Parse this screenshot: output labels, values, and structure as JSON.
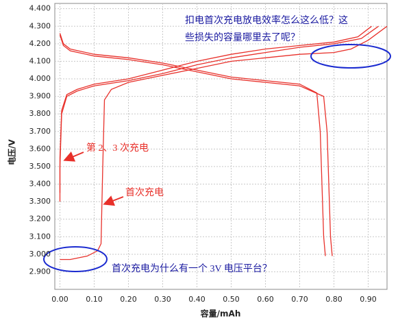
{
  "chart_data": {
    "type": "line",
    "xlabel": "容量/mAh",
    "ylabel": "电压/V",
    "xlim": [
      -0.015,
      0.955
    ],
    "ylim": [
      2.8,
      4.43
    ],
    "grid": true,
    "xticks": [
      {
        "value": 0,
        "label": "0.00"
      },
      {
        "value": 0.1,
        "label": "0.10"
      },
      {
        "value": 0.2,
        "label": "0.20"
      },
      {
        "value": 0.3,
        "label": "0.30"
      },
      {
        "value": 0.4,
        "label": "0.40"
      },
      {
        "value": 0.5,
        "label": "0.50"
      },
      {
        "value": 0.6,
        "label": "0.60"
      },
      {
        "value": 0.7,
        "label": "0.70"
      },
      {
        "value": 0.8,
        "label": "0.80"
      },
      {
        "value": 0.9,
        "label": "0.90"
      }
    ],
    "yticks": [
      {
        "value": 2.9,
        "label": "2.900"
      },
      {
        "value": 3.0,
        "label": "3.000"
      },
      {
        "value": 3.1,
        "label": "3.100"
      },
      {
        "value": 3.2,
        "label": "3.200"
      },
      {
        "value": 3.3,
        "label": "3.300"
      },
      {
        "value": 3.4,
        "label": "3.400"
      },
      {
        "value": 3.5,
        "label": "3.500"
      },
      {
        "value": 3.6,
        "label": "3.600"
      },
      {
        "value": 3.7,
        "label": "3.700"
      },
      {
        "value": 3.8,
        "label": "3.800"
      },
      {
        "value": 3.9,
        "label": "3.900"
      },
      {
        "value": 4.0,
        "label": "4.000"
      },
      {
        "value": 4.1,
        "label": "4.100"
      },
      {
        "value": 4.2,
        "label": "4.200"
      },
      {
        "value": 4.3,
        "label": "4.300"
      },
      {
        "value": 4.4,
        "label": "4.400"
      }
    ],
    "series": [
      {
        "color": "#e8302a",
        "x": [
          0.0,
          0.03,
          0.08,
          0.11,
          0.12,
          0.125,
          0.13,
          0.15,
          0.2,
          0.3,
          0.4,
          0.5,
          0.6,
          0.7,
          0.8,
          0.85,
          0.9,
          0.955
        ],
        "values": [
          2.97,
          2.97,
          2.99,
          3.02,
          3.06,
          3.5,
          3.88,
          3.94,
          3.98,
          4.02,
          4.06,
          4.1,
          4.12,
          4.14,
          4.15,
          4.17,
          4.22,
          4.3
        ]
      },
      {
        "color": "#e8302a",
        "x": [
          0.0,
          0.0,
          0.005,
          0.02,
          0.05,
          0.1,
          0.2,
          0.3,
          0.4,
          0.5,
          0.6,
          0.7,
          0.8,
          0.88,
          0.93
        ],
        "values": [
          3.3,
          3.5,
          3.8,
          3.9,
          3.93,
          3.96,
          3.99,
          4.03,
          4.08,
          4.12,
          4.15,
          4.18,
          4.2,
          4.23,
          4.3
        ]
      },
      {
        "color": "#e8302a",
        "x": [
          0.0,
          0.0,
          0.005,
          0.02,
          0.05,
          0.1,
          0.2,
          0.3,
          0.4,
          0.5,
          0.6,
          0.7,
          0.8,
          0.87,
          0.91
        ],
        "values": [
          3.35,
          3.55,
          3.82,
          3.91,
          3.94,
          3.97,
          4.0,
          4.05,
          4.1,
          4.14,
          4.17,
          4.19,
          4.21,
          4.24,
          4.3
        ]
      },
      {
        "color": "#e8302a",
        "x": [
          0.0,
          0.01,
          0.03,
          0.1,
          0.2,
          0.3,
          0.4,
          0.5,
          0.6,
          0.7,
          0.75,
          0.76,
          0.765,
          0.77,
          0.775
        ],
        "values": [
          4.26,
          4.2,
          4.17,
          4.14,
          4.12,
          4.09,
          4.05,
          4.01,
          3.99,
          3.97,
          3.92,
          3.7,
          3.4,
          3.1,
          2.99
        ]
      },
      {
        "color": "#e8302a",
        "x": [
          0.0,
          0.01,
          0.03,
          0.1,
          0.2,
          0.3,
          0.4,
          0.5,
          0.6,
          0.7,
          0.77,
          0.78,
          0.785,
          0.79,
          0.795
        ],
        "values": [
          4.25,
          4.19,
          4.16,
          4.13,
          4.11,
          4.08,
          4.04,
          4.0,
          3.98,
          3.96,
          3.9,
          3.7,
          3.4,
          3.1,
          2.99
        ]
      }
    ],
    "annotations": [
      "扣电首次充电放电效率怎么这么低？这",
      "些损失的容量哪里去了呢？",
      "第 2、3 次充电",
      "首次充电",
      "首次充电为什么有一个 3V 电压平台？"
    ]
  }
}
